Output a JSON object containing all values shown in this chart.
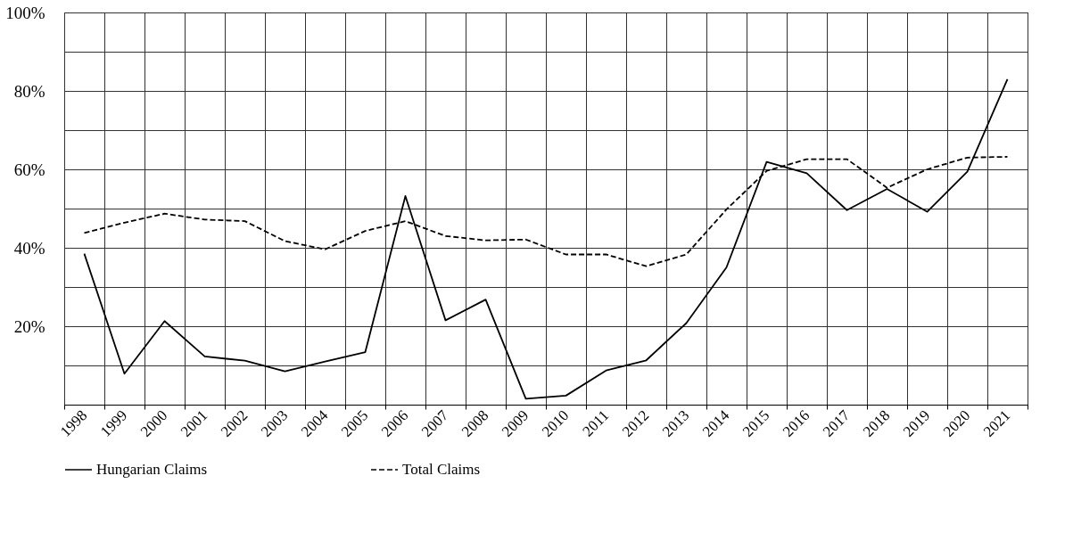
{
  "chart_data": {
    "type": "line",
    "categories": [
      "1998",
      "1999",
      "2000",
      "2001",
      "2002",
      "2003",
      "2004",
      "2005",
      "2006",
      "2007",
      "2008",
      "2009",
      "2010",
      "2011",
      "2012",
      "2013",
      "2014",
      "2015",
      "2016",
      "2017",
      "2018",
      "2019",
      "2020",
      "2021"
    ],
    "series": [
      {
        "name": "Hungarian Claims",
        "color": "#000000",
        "line_style": "solid",
        "values": [
          38.5,
          7.9,
          21.3,
          12.3,
          11.2,
          8.5,
          11,
          13.4,
          53.2,
          21.5,
          26.8,
          1.5,
          2.3,
          8.7,
          11.3,
          20.8,
          35,
          61.9,
          59,
          49.6,
          55,
          49.2,
          59.4,
          83
        ]
      },
      {
        "name": "Total Claims",
        "color": "#000000",
        "line_style": "dashed",
        "values": [
          43.8,
          46.4,
          48.7,
          47.2,
          46.8,
          41.7,
          39.6,
          44.3,
          46.8,
          43,
          41.9,
          42.1,
          38.3,
          38.3,
          35.3,
          38.3,
          49.8,
          59.6,
          62.6,
          62.6,
          55.3,
          60,
          63,
          63.2
        ]
      }
    ],
    "ylim": [
      0,
      100
    ],
    "yticks": [
      {
        "value": 0,
        "label": null
      },
      {
        "value": 10,
        "label": null
      },
      {
        "value": 20,
        "label": "20%"
      },
      {
        "value": 30,
        "label": null
      },
      {
        "value": 40,
        "label": "40%"
      },
      {
        "value": 50,
        "label": null
      },
      {
        "value": 60,
        "label": "60%"
      },
      {
        "value": 70,
        "label": null
      },
      {
        "value": 80,
        "label": "80%"
      },
      {
        "value": 90,
        "label": null
      },
      {
        "value": 100,
        "label": "100%"
      }
    ],
    "grid": true,
    "legend": "bottom",
    "marker": "none"
  }
}
